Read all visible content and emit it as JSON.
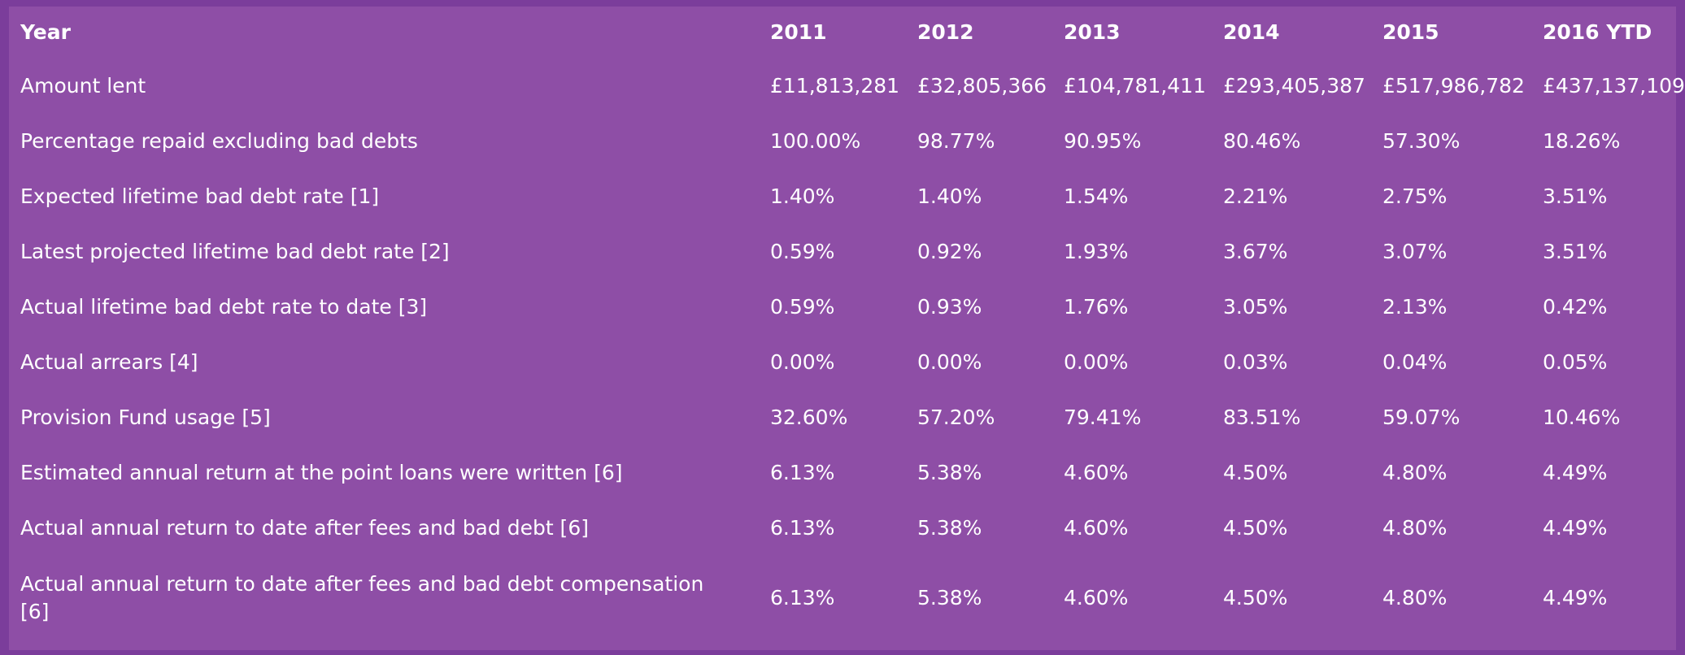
{
  "table": {
    "headers": [
      "Year",
      "2011",
      "2012",
      "2013",
      "2014",
      "2015",
      "2016 YTD"
    ],
    "rows": [
      {
        "label": "Amount lent",
        "values": [
          "£11,813,281",
          "£32,805,366",
          "£104,781,411",
          "£293,405,387",
          "£517,986,782",
          "£437,137,109"
        ]
      },
      {
        "label": "Percentage repaid excluding bad debts",
        "values": [
          "100.00%",
          "98.77%",
          "90.95%",
          "80.46%",
          "57.30%",
          "18.26%"
        ]
      },
      {
        "label": "Expected lifetime bad debt rate [1]",
        "values": [
          "1.40%",
          "1.40%",
          "1.54%",
          "2.21%",
          "2.75%",
          "3.51%"
        ]
      },
      {
        "label": "Latest projected lifetime bad debt rate [2]",
        "values": [
          "0.59%",
          "0.92%",
          "1.93%",
          "3.67%",
          "3.07%",
          "3.51%"
        ]
      },
      {
        "label": "Actual lifetime bad debt rate to date [3]",
        "values": [
          "0.59%",
          "0.93%",
          "1.76%",
          "3.05%",
          "2.13%",
          "0.42%"
        ]
      },
      {
        "label": "Actual arrears [4]",
        "values": [
          "0.00%",
          "0.00%",
          "0.00%",
          "0.03%",
          "0.04%",
          "0.05%"
        ]
      },
      {
        "label": "Provision Fund usage [5]",
        "values": [
          "32.60%",
          "57.20%",
          "79.41%",
          "83.51%",
          "59.07%",
          "10.46%"
        ]
      },
      {
        "label": "Estimated annual return at the point loans were written [6]",
        "values": [
          "6.13%",
          "5.38%",
          "4.60%",
          "4.50%",
          "4.80%",
          "4.49%"
        ]
      },
      {
        "label": "Actual annual return to date after fees and bad debt [6]",
        "values": [
          "6.13%",
          "5.38%",
          "4.60%",
          "4.50%",
          "4.80%",
          "4.49%"
        ]
      },
      {
        "label": "Actual annual return to date after fees and bad debt compensation [6]",
        "values": [
          "6.13%",
          "5.38%",
          "4.60%",
          "4.50%",
          "4.80%",
          "4.49%"
        ]
      }
    ]
  }
}
